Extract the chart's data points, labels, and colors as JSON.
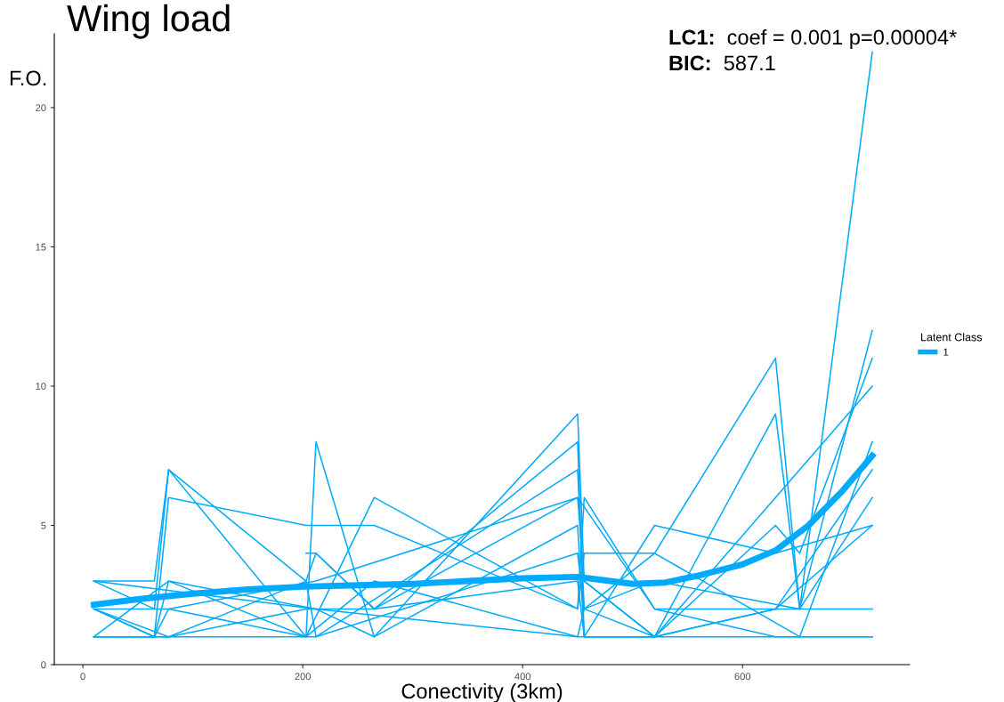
{
  "chart_data": {
    "type": "line",
    "title": "Wing load",
    "xlabel": "Conectivity (3km)",
    "ylabel": "F.O.",
    "legend_title": "Latent Class",
    "legend": "right",
    "grid": false,
    "marker": "none",
    "line_style": "solid",
    "xlim": [
      -26,
      752
    ],
    "xticks": [
      0,
      200,
      400,
      600
    ],
    "ylim": [
      0,
      22.65
    ],
    "yticks": [
      0,
      5,
      10,
      15,
      20
    ],
    "annotations": [
      "LC1:  coef = 0.001 p=0.00004*",
      "BIC:  587.1"
    ],
    "series": [
      {
        "color": "#00aaff",
        "x": [
          10,
          65,
          78,
          203,
          212,
          265,
          450,
          456,
          520,
          630,
          718
        ],
        "values": [
          3,
          3,
          7,
          3,
          4,
          2,
          3,
          1,
          1,
          2,
          2
        ]
      },
      {
        "color": "#00aaff",
        "x": [
          10,
          65,
          78,
          203,
          265,
          450,
          456,
          520,
          630,
          652,
          718
        ],
        "values": [
          2,
          1,
          6,
          5,
          5,
          2,
          4,
          4,
          11,
          2,
          22
        ]
      },
      {
        "color": "#00aaff",
        "x": [
          10,
          65,
          78,
          203,
          212,
          265,
          450,
          456,
          520,
          630,
          652,
          718
        ],
        "values": [
          1,
          1,
          3,
          1,
          8,
          1,
          9,
          3,
          1,
          9,
          2,
          12
        ]
      },
      {
        "color": "#00aaff",
        "x": [
          10,
          65,
          78,
          203,
          265,
          450,
          456,
          520,
          630,
          718
        ],
        "values": [
          3,
          2,
          7,
          1,
          6,
          2,
          6,
          2,
          1,
          1
        ]
      },
      {
        "color": "#00aaff",
        "x": [
          10,
          78,
          203,
          265,
          450,
          456,
          520,
          630,
          718
        ],
        "values": [
          2,
          1,
          2,
          2,
          8,
          1,
          5,
          4,
          5
        ]
      },
      {
        "color": "#00aaff",
        "x": [
          10,
          78,
          203,
          212,
          450,
          456,
          520,
          652,
          718
        ],
        "values": [
          1,
          1,
          3,
          1,
          7,
          2,
          4,
          1,
          8
        ]
      },
      {
        "color": "#00aaff",
        "x": [
          10,
          65,
          78,
          212,
          450,
          456,
          520,
          630,
          652,
          718
        ],
        "values": [
          2,
          1,
          2,
          3,
          6,
          3,
          1,
          5,
          4,
          11
        ]
      },
      {
        "color": "#00aaff",
        "x": [
          10,
          78,
          212,
          265,
          450,
          456,
          520,
          630,
          718
        ],
        "values": [
          1,
          3,
          2,
          1,
          5,
          1,
          1,
          6,
          10
        ]
      },
      {
        "color": "#00aaff",
        "x": [
          10,
          65,
          212,
          450,
          456,
          520,
          630,
          718
        ],
        "values": [
          1,
          1,
          1,
          4,
          2,
          1,
          2,
          7
        ]
      },
      {
        "color": "#00aaff",
        "x": [
          10,
          78,
          203,
          265,
          450,
          456,
          520,
          630,
          718
        ],
        "values": [
          2,
          2,
          1,
          3,
          1,
          1,
          1,
          1,
          1
        ]
      },
      {
        "color": "#00aaff",
        "x": [
          10,
          212,
          450,
          456,
          520,
          652,
          718
        ],
        "values": [
          3,
          2,
          1,
          2,
          3,
          2,
          6
        ]
      },
      {
        "color": "#00aaff",
        "x": [
          203,
          212,
          265,
          450,
          520,
          630,
          718
        ],
        "values": [
          4,
          4,
          2,
          6,
          2,
          2,
          5
        ]
      },
      {
        "name": "1",
        "color": "#00aaff",
        "x": [
          10,
          50,
          100,
          150,
          200,
          250,
          300,
          350,
          400,
          450,
          470,
          500,
          530,
          560,
          600,
          630,
          660,
          690,
          718
        ],
        "values": [
          2.15,
          2.35,
          2.55,
          2.7,
          2.8,
          2.85,
          2.9,
          3.0,
          3.1,
          3.15,
          3.05,
          2.9,
          2.95,
          3.2,
          3.6,
          4.1,
          5.0,
          6.2,
          7.5
        ]
      }
    ]
  }
}
